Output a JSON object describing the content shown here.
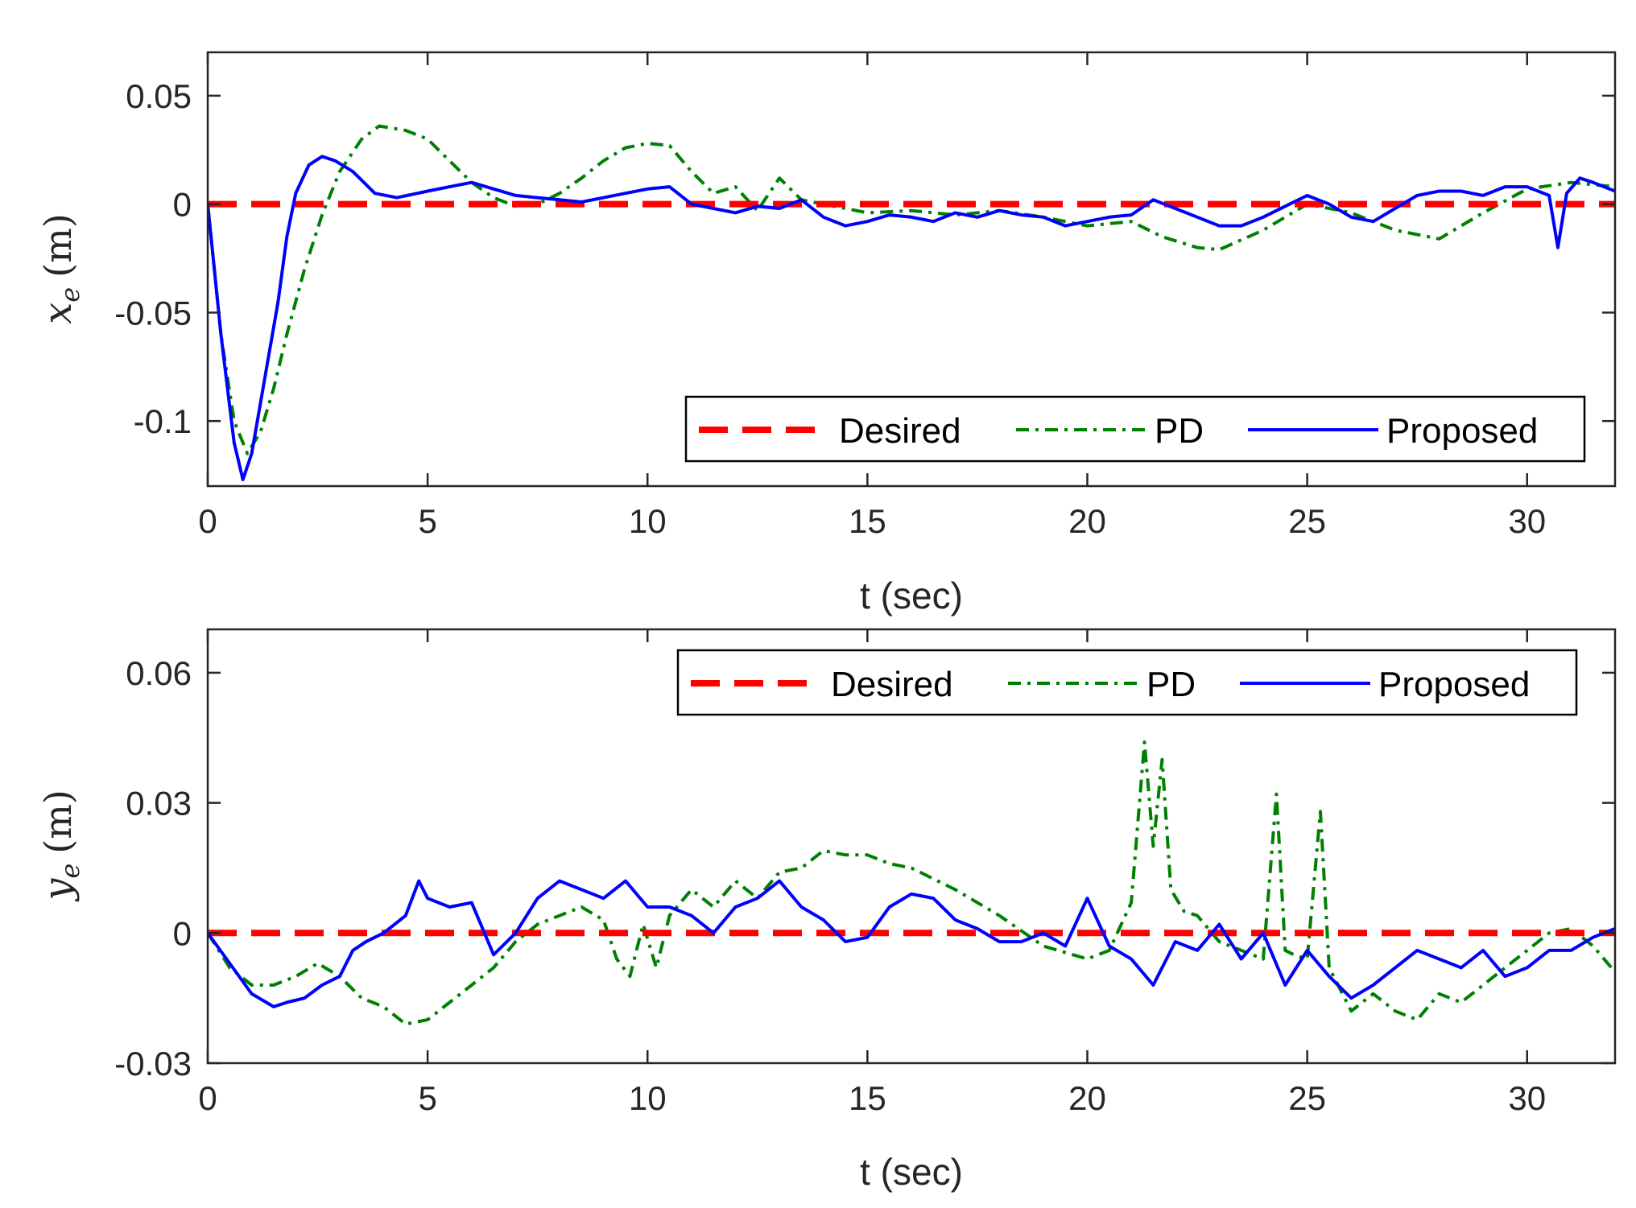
{
  "colors": {
    "desired": "#ff0000",
    "pd": "#008000",
    "proposed": "#0000ff",
    "axis": "#262626"
  },
  "chart_data": [
    {
      "type": "line",
      "xlabel": "t (sec)",
      "ylabel": {
        "var": "x",
        "sub": "e",
        "unit": "(m)"
      },
      "xlim": [
        0,
        32
      ],
      "ylim": [
        -0.13,
        0.07
      ],
      "xticks": [
        0,
        5,
        10,
        15,
        20,
        25,
        30
      ],
      "xtick_labels": [
        "0",
        "5",
        "10",
        "15",
        "20",
        "25",
        "30"
      ],
      "yticks": [
        0.05,
        0,
        -0.05,
        -0.1
      ],
      "ytick_labels": [
        "0.05",
        "0",
        "-0.05",
        "-0.1"
      ],
      "legend": {
        "position": "bottom-right",
        "entries": [
          "Desired",
          "PD",
          "Proposed"
        ]
      },
      "series": [
        {
          "name": "Desired",
          "style": "dashed",
          "x": [
            0,
            32
          ],
          "y": [
            0,
            0
          ]
        },
        {
          "name": "PD",
          "style": "dashdot",
          "x": [
            0,
            0.3,
            0.6,
            0.9,
            1.2,
            1.5,
            1.8,
            2.2,
            2.6,
            3.0,
            3.5,
            3.9,
            4.5,
            5.0,
            5.5,
            6.0,
            6.5,
            7.0,
            7.5,
            8.0,
            8.5,
            9.0,
            9.5,
            10.0,
            10.5,
            11.0,
            11.5,
            12.0,
            12.5,
            13.0,
            13.5,
            14.0,
            15.0,
            16.0,
            17.0,
            18.0,
            19.0,
            20.0,
            21.0,
            21.7,
            22.5,
            23.0,
            24.0,
            25.0,
            26.0,
            27.0,
            28.0,
            29.0,
            30.0,
            31.0,
            32.0
          ],
          "y": [
            0,
            -0.06,
            -0.1,
            -0.115,
            -0.105,
            -0.085,
            -0.06,
            -0.03,
            -0.005,
            0.015,
            0.03,
            0.036,
            0.034,
            0.03,
            0.02,
            0.01,
            0.003,
            -0.001,
            0.0,
            0.005,
            0.012,
            0.02,
            0.026,
            0.028,
            0.027,
            0.015,
            0.005,
            0.008,
            -0.003,
            0.012,
            0.002,
            0.0,
            -0.004,
            -0.003,
            -0.005,
            -0.003,
            -0.006,
            -0.01,
            -0.008,
            -0.015,
            -0.02,
            -0.021,
            -0.012,
            0.0,
            -0.004,
            -0.012,
            -0.016,
            -0.004,
            0.007,
            0.01,
            0.008
          ]
        },
        {
          "name": "Proposed",
          "style": "solid",
          "x": [
            0,
            0.3,
            0.6,
            0.8,
            1.0,
            1.3,
            1.6,
            1.8,
            2.0,
            2.3,
            2.6,
            2.9,
            3.3,
            3.8,
            4.3,
            5.0,
            5.5,
            6.0,
            6.5,
            7.0,
            7.5,
            8.0,
            8.5,
            9.0,
            9.5,
            10.0,
            10.5,
            11.0,
            11.5,
            12.0,
            12.5,
            13.0,
            13.5,
            14.0,
            14.5,
            15.0,
            15.5,
            16.0,
            16.5,
            17.0,
            17.5,
            18.0,
            18.5,
            19.0,
            19.5,
            20.0,
            20.5,
            21.0,
            21.5,
            22.0,
            22.5,
            23.0,
            23.5,
            24.0,
            24.5,
            25.0,
            25.5,
            26.0,
            26.5,
            27.0,
            27.5,
            28.0,
            28.5,
            29.0,
            29.5,
            30.0,
            30.5,
            30.7,
            30.9,
            31.2,
            31.5,
            32.0
          ],
          "y": [
            0,
            -0.06,
            -0.11,
            -0.127,
            -0.115,
            -0.08,
            -0.045,
            -0.015,
            0.005,
            0.018,
            0.022,
            0.02,
            0.015,
            0.005,
            0.003,
            0.006,
            0.008,
            0.01,
            0.007,
            0.004,
            0.003,
            0.002,
            0.001,
            0.003,
            0.005,
            0.007,
            0.008,
            0.0,
            -0.002,
            -0.004,
            -0.001,
            -0.002,
            0.002,
            -0.006,
            -0.01,
            -0.008,
            -0.005,
            -0.006,
            -0.008,
            -0.004,
            -0.006,
            -0.003,
            -0.005,
            -0.006,
            -0.01,
            -0.008,
            -0.006,
            -0.005,
            0.002,
            -0.002,
            -0.006,
            -0.01,
            -0.01,
            -0.006,
            -0.001,
            0.004,
            0.0,
            -0.006,
            -0.008,
            -0.002,
            0.004,
            0.006,
            0.006,
            0.004,
            0.008,
            0.008,
            0.004,
            -0.02,
            0.005,
            0.012,
            0.01,
            0.006
          ]
        }
      ]
    },
    {
      "type": "line",
      "xlabel": "t (sec)",
      "ylabel": {
        "var": "y",
        "sub": "e",
        "unit": "(m)"
      },
      "xlim": [
        0,
        32
      ],
      "ylim": [
        -0.03,
        0.07
      ],
      "xticks": [
        0,
        5,
        10,
        15,
        20,
        25,
        30
      ],
      "xtick_labels": [
        "0",
        "5",
        "10",
        "15",
        "20",
        "25",
        "30"
      ],
      "yticks": [
        0.06,
        0.03,
        0,
        -0.03
      ],
      "ytick_labels": [
        "0.06",
        "0.03",
        "0",
        "-0.03"
      ],
      "legend": {
        "position": "top-right",
        "entries": [
          "Desired",
          "PD",
          "Proposed"
        ]
      },
      "series": [
        {
          "name": "Desired",
          "style": "dashed",
          "x": [
            0,
            32
          ],
          "y": [
            0,
            0
          ]
        },
        {
          "name": "PD",
          "style": "dashdot",
          "x": [
            0,
            0.5,
            1.0,
            1.5,
            2.0,
            2.5,
            3.0,
            3.5,
            4.0,
            4.5,
            5.0,
            5.5,
            6.0,
            6.5,
            7.0,
            7.5,
            8.0,
            8.5,
            9.0,
            9.3,
            9.6,
            9.9,
            10.2,
            10.5,
            11.0,
            11.5,
            12.0,
            12.5,
            13.0,
            13.5,
            14.0,
            14.5,
            15.0,
            15.5,
            16.0,
            17.0,
            18.0,
            19.0,
            20.0,
            20.5,
            21.0,
            21.3,
            21.5,
            21.7,
            21.9,
            22.2,
            22.5,
            23.0,
            23.5,
            24.0,
            24.3,
            24.5,
            24.7,
            25.0,
            25.3,
            25.5,
            25.7,
            26.0,
            26.5,
            27.0,
            27.5,
            28.0,
            28.5,
            29.0,
            29.5,
            30.0,
            30.5,
            31.0,
            31.5,
            32.0
          ],
          "y": [
            0,
            -0.008,
            -0.012,
            -0.012,
            -0.01,
            -0.007,
            -0.01,
            -0.015,
            -0.017,
            -0.021,
            -0.02,
            -0.016,
            -0.012,
            -0.008,
            -0.002,
            0.002,
            0.004,
            0.006,
            0.003,
            -0.006,
            -0.01,
            0.002,
            -0.008,
            0.004,
            0.01,
            0.006,
            0.012,
            0.008,
            0.014,
            0.015,
            0.019,
            0.018,
            0.018,
            0.016,
            0.015,
            0.01,
            0.004,
            -0.003,
            -0.006,
            -0.004,
            0.007,
            0.044,
            0.02,
            0.04,
            0.01,
            0.005,
            0.004,
            -0.002,
            -0.004,
            -0.006,
            0.032,
            -0.004,
            -0.005,
            -0.006,
            0.028,
            -0.008,
            -0.012,
            -0.018,
            -0.014,
            -0.018,
            -0.02,
            -0.014,
            -0.016,
            -0.012,
            -0.008,
            -0.004,
            0.0,
            0.001,
            -0.003,
            -0.009
          ]
        },
        {
          "name": "Proposed",
          "style": "solid",
          "x": [
            0,
            0.5,
            1.0,
            1.5,
            1.8,
            2.2,
            2.6,
            3.0,
            3.3,
            3.6,
            4.0,
            4.5,
            4.8,
            5.0,
            5.5,
            6.0,
            6.5,
            7.0,
            7.5,
            8.0,
            8.5,
            9.0,
            9.5,
            10.0,
            10.5,
            11.0,
            11.5,
            12.0,
            12.5,
            13.0,
            13.5,
            14.0,
            14.5,
            15.0,
            15.5,
            16.0,
            16.5,
            17.0,
            17.5,
            18.0,
            18.5,
            19.0,
            19.5,
            20.0,
            20.5,
            21.0,
            21.5,
            22.0,
            22.5,
            23.0,
            23.5,
            24.0,
            24.5,
            25.0,
            25.5,
            26.0,
            26.5,
            27.0,
            27.5,
            28.0,
            28.5,
            29.0,
            29.5,
            30.0,
            30.5,
            31.0,
            31.5,
            32.0
          ],
          "y": [
            0,
            -0.007,
            -0.014,
            -0.017,
            -0.016,
            -0.015,
            -0.012,
            -0.01,
            -0.004,
            -0.002,
            0.0,
            0.004,
            0.012,
            0.008,
            0.006,
            0.007,
            -0.005,
            0.0,
            0.008,
            0.012,
            0.01,
            0.008,
            0.012,
            0.006,
            0.006,
            0.004,
            0.0,
            0.006,
            0.008,
            0.012,
            0.006,
            0.003,
            -0.002,
            -0.001,
            0.006,
            0.009,
            0.008,
            0.003,
            0.001,
            -0.002,
            -0.002,
            0.0,
            -0.003,
            0.008,
            -0.003,
            -0.006,
            -0.012,
            -0.002,
            -0.004,
            0.002,
            -0.006,
            0.0,
            -0.012,
            -0.004,
            -0.01,
            -0.015,
            -0.012,
            -0.008,
            -0.004,
            -0.006,
            -0.008,
            -0.004,
            -0.01,
            -0.008,
            -0.004,
            -0.004,
            -0.001,
            0.001
          ]
        }
      ]
    }
  ]
}
